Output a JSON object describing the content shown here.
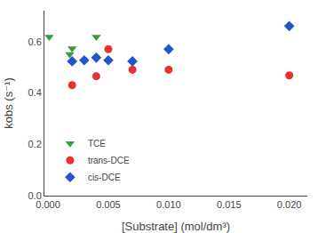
{
  "chart_data": {
    "type": "scatter",
    "xlabel": "[Substrate] (mol/dm³)",
    "ylabel": "kobs (s⁻¹)",
    "xlim": [
      -0.0003,
      0.0215
    ],
    "ylim": [
      0.0,
      0.72
    ],
    "xticks": [
      {
        "value": 0.0,
        "label": "0.000"
      },
      {
        "value": 0.005,
        "label": "0.005"
      },
      {
        "value": 0.01,
        "label": "0.010"
      },
      {
        "value": 0.015,
        "label": "0.015"
      },
      {
        "value": 0.02,
        "label": "0.020"
      }
    ],
    "yticks": [
      {
        "value": 0.0,
        "label": "0.0"
      },
      0.2,
      0.4,
      0.6
    ],
    "grid": false,
    "legend": "lower left",
    "series": [
      {
        "name": "TCE",
        "color": "#3a9a3a",
        "marker": "triangle-down",
        "x": [
          0.0001,
          0.0018,
          0.002,
          0.004
        ],
        "values": [
          0.618,
          0.55,
          0.573,
          0.618
        ]
      },
      {
        "name": "trans-DCE",
        "color": "#e83030",
        "marker": "circle",
        "x": [
          0.002,
          0.004,
          0.005,
          0.007,
          0.01,
          0.02
        ],
        "values": [
          0.43,
          0.465,
          0.57,
          0.49,
          0.49,
          0.468
        ]
      },
      {
        "name": "cis-DCE",
        "color": "#2255cc",
        "marker": "diamond",
        "x": [
          0.002,
          0.003,
          0.004,
          0.005,
          0.007,
          0.01,
          0.02
        ],
        "values": [
          0.523,
          0.527,
          0.537,
          0.527,
          0.523,
          0.57,
          0.66
        ]
      }
    ]
  }
}
